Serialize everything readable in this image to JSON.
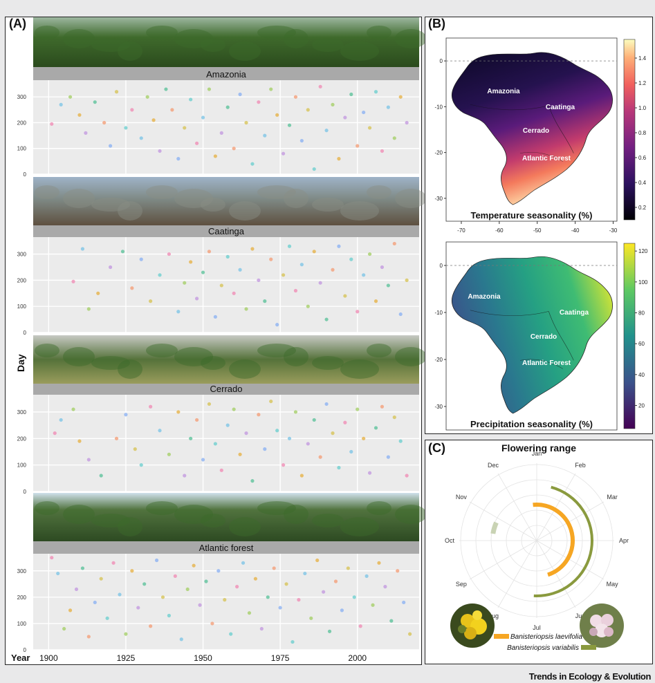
{
  "panel_a": {
    "label": "(A)",
    "y_axis_label": "Day",
    "x_axis_label": "Year",
    "x_ticks": [
      "1900",
      "1925",
      "1950",
      "1975",
      "2000"
    ],
    "y_ticks": [
      "0",
      "100",
      "200",
      "300"
    ]
  },
  "panel_b": {
    "label": "(B)",
    "x_ticks": [
      "-70",
      "-60",
      "-50",
      "-40",
      "-30"
    ],
    "y_ticks": [
      "0",
      "-10",
      "-20",
      "-30"
    ],
    "temp_title": "Temperature seasonality (%)",
    "precip_title": "Precipitation seasonality (%)",
    "temp_colorbar": [
      "1.4",
      "1.2",
      "1.0",
      "0.8",
      "0.6",
      "0.4",
      "0.2"
    ],
    "precip_colorbar": [
      "120",
      "100",
      "80",
      "60",
      "40",
      "20"
    ],
    "regions": [
      "Amazonia",
      "Caatinga",
      "Cerrado",
      "Atlantic Forest"
    ]
  },
  "panel_c": {
    "label": "(C)",
    "title": "Flowering range",
    "months": [
      "Jan",
      "Feb",
      "Mar",
      "Apr",
      "May",
      "Jun",
      "Jul",
      "Aug",
      "Sep",
      "Oct",
      "Nov",
      "Dec"
    ],
    "species_1": "Banisteriopsis laevifolia",
    "species_2": "Banisteriopsis variabilis",
    "color_1": "#f6a623",
    "color_2": "#8a9a3e"
  },
  "footer": "Trends in Ecology & Evolution",
  "chart_data": [
    {
      "type": "scatter",
      "panel": "A",
      "xlabel": "Year",
      "ylabel": "Day",
      "xlim": [
        1895,
        2020
      ],
      "ylim": [
        0,
        365
      ],
      "facets": [
        {
          "name": "Amazonia",
          "points": [
            [
              1901,
              195
            ],
            [
              1904,
              270
            ],
            [
              1907,
              300
            ],
            [
              1910,
              230
            ],
            [
              1912,
              160
            ],
            [
              1915,
              280
            ],
            [
              1918,
              200
            ],
            [
              1920,
              110
            ],
            [
              1922,
              320
            ],
            [
              1925,
              180
            ],
            [
              1927,
              250
            ],
            [
              1930,
              140
            ],
            [
              1932,
              300
            ],
            [
              1934,
              210
            ],
            [
              1936,
              90
            ],
            [
              1938,
              330
            ],
            [
              1940,
              250
            ],
            [
              1942,
              60
            ],
            [
              1944,
              180
            ],
            [
              1946,
              290
            ],
            [
              1948,
              120
            ],
            [
              1950,
              220
            ],
            [
              1952,
              330
            ],
            [
              1954,
              70
            ],
            [
              1956,
              160
            ],
            [
              1958,
              260
            ],
            [
              1960,
              100
            ],
            [
              1962,
              310
            ],
            [
              1964,
              200
            ],
            [
              1966,
              40
            ],
            [
              1968,
              280
            ],
            [
              1970,
              150
            ],
            [
              1972,
              330
            ],
            [
              1974,
              230
            ],
            [
              1976,
              80
            ],
            [
              1978,
              190
            ],
            [
              1980,
              300
            ],
            [
              1982,
              130
            ],
            [
              1984,
              250
            ],
            [
              1986,
              20
            ],
            [
              1988,
              340
            ],
            [
              1990,
              170
            ],
            [
              1992,
              270
            ],
            [
              1994,
              60
            ],
            [
              1996,
              220
            ],
            [
              1998,
              310
            ],
            [
              2000,
              110
            ],
            [
              2002,
              240
            ],
            [
              2004,
              180
            ],
            [
              2006,
              320
            ],
            [
              2008,
              90
            ],
            [
              2010,
              260
            ],
            [
              2012,
              140
            ],
            [
              2014,
              300
            ],
            [
              2016,
              200
            ]
          ]
        },
        {
          "name": "Caatinga",
          "points": [
            [
              1908,
              195
            ],
            [
              1911,
              320
            ],
            [
              1913,
              90
            ],
            [
              1916,
              150
            ],
            [
              1920,
              250
            ],
            [
              1924,
              310
            ],
            [
              1927,
              170
            ],
            [
              1930,
              280
            ],
            [
              1933,
              120
            ],
            [
              1936,
              220
            ],
            [
              1939,
              300
            ],
            [
              1942,
              80
            ],
            [
              1944,
              190
            ],
            [
              1946,
              270
            ],
            [
              1948,
              130
            ],
            [
              1950,
              230
            ],
            [
              1952,
              310
            ],
            [
              1954,
              60
            ],
            [
              1956,
              180
            ],
            [
              1958,
              290
            ],
            [
              1960,
              150
            ],
            [
              1962,
              240
            ],
            [
              1964,
              90
            ],
            [
              1966,
              320
            ],
            [
              1968,
              200
            ],
            [
              1970,
              120
            ],
            [
              1972,
              280
            ],
            [
              1974,
              30
            ],
            [
              1976,
              220
            ],
            [
              1978,
              330
            ],
            [
              1980,
              160
            ],
            [
              1982,
              260
            ],
            [
              1984,
              100
            ],
            [
              1986,
              310
            ],
            [
              1988,
              190
            ],
            [
              1990,
              50
            ],
            [
              1992,
              240
            ],
            [
              1994,
              330
            ],
            [
              1996,
              140
            ],
            [
              1998,
              280
            ],
            [
              2000,
              80
            ],
            [
              2002,
              220
            ],
            [
              2004,
              300
            ],
            [
              2006,
              120
            ],
            [
              2008,
              250
            ],
            [
              2010,
              180
            ],
            [
              2012,
              340
            ],
            [
              2014,
              70
            ],
            [
              2016,
              200
            ]
          ]
        },
        {
          "name": "Cerrado",
          "points": [
            [
              1902,
              220
            ],
            [
              1904,
              270
            ],
            [
              1908,
              310
            ],
            [
              1910,
              190
            ],
            [
              1913,
              120
            ],
            [
              1917,
              60
            ],
            [
              1922,
              200
            ],
            [
              1925,
              290
            ],
            [
              1928,
              160
            ],
            [
              1930,
              100
            ],
            [
              1933,
              320
            ],
            [
              1936,
              230
            ],
            [
              1939,
              140
            ],
            [
              1942,
              300
            ],
            [
              1944,
              60
            ],
            [
              1946,
              200
            ],
            [
              1948,
              270
            ],
            [
              1950,
              120
            ],
            [
              1952,
              330
            ],
            [
              1954,
              180
            ],
            [
              1956,
              80
            ],
            [
              1958,
              250
            ],
            [
              1960,
              310
            ],
            [
              1962,
              140
            ],
            [
              1964,
              220
            ],
            [
              1966,
              40
            ],
            [
              1968,
              290
            ],
            [
              1970,
              160
            ],
            [
              1972,
              340
            ],
            [
              1974,
              230
            ],
            [
              1976,
              100
            ],
            [
              1978,
              200
            ],
            [
              1980,
              300
            ],
            [
              1982,
              60
            ],
            [
              1984,
              180
            ],
            [
              1986,
              270
            ],
            [
              1988,
              130
            ],
            [
              1990,
              330
            ],
            [
              1992,
              220
            ],
            [
              1994,
              90
            ],
            [
              1996,
              260
            ],
            [
              1998,
              150
            ],
            [
              2000,
              310
            ],
            [
              2002,
              200
            ],
            [
              2004,
              70
            ],
            [
              2006,
              240
            ],
            [
              2008,
              320
            ],
            [
              2010,
              130
            ],
            [
              2012,
              280
            ],
            [
              2014,
              190
            ],
            [
              2016,
              60
            ]
          ]
        },
        {
          "name": "Atlantic forest",
          "points": [
            [
              1901,
              350
            ],
            [
              1903,
              290
            ],
            [
              1905,
              80
            ],
            [
              1907,
              150
            ],
            [
              1909,
              230
            ],
            [
              1911,
              310
            ],
            [
              1913,
              50
            ],
            [
              1915,
              180
            ],
            [
              1917,
              270
            ],
            [
              1919,
              120
            ],
            [
              1921,
              330
            ],
            [
              1923,
              210
            ],
            [
              1925,
              60
            ],
            [
              1927,
              300
            ],
            [
              1929,
              160
            ],
            [
              1931,
              250
            ],
            [
              1933,
              90
            ],
            [
              1935,
              340
            ],
            [
              1937,
              200
            ],
            [
              1939,
              130
            ],
            [
              1941,
              280
            ],
            [
              1943,
              40
            ],
            [
              1945,
              230
            ],
            [
              1947,
              320
            ],
            [
              1949,
              170
            ],
            [
              1951,
              260
            ],
            [
              1953,
              100
            ],
            [
              1955,
              300
            ],
            [
              1957,
              190
            ],
            [
              1959,
              60
            ],
            [
              1961,
              240
            ],
            [
              1963,
              330
            ],
            [
              1965,
              140
            ],
            [
              1967,
              270
            ],
            [
              1969,
              80
            ],
            [
              1971,
              200
            ],
            [
              1973,
              310
            ],
            [
              1975,
              160
            ],
            [
              1977,
              250
            ],
            [
              1979,
              30
            ],
            [
              1981,
              190
            ],
            [
              1983,
              290
            ],
            [
              1985,
              120
            ],
            [
              1987,
              340
            ],
            [
              1989,
              220
            ],
            [
              1991,
              70
            ],
            [
              1993,
              260
            ],
            [
              1995,
              150
            ],
            [
              1997,
              310
            ],
            [
              1999,
              200
            ],
            [
              2001,
              90
            ],
            [
              2003,
              280
            ],
            [
              2005,
              170
            ],
            [
              2007,
              330
            ],
            [
              2009,
              240
            ],
            [
              2011,
              110
            ],
            [
              2013,
              300
            ],
            [
              2015,
              180
            ],
            [
              2017,
              60
            ]
          ]
        }
      ]
    },
    {
      "type": "heatmap",
      "panel": "B-top",
      "title": "Temperature seasonality (%)",
      "colorbar_range": [
        0.1,
        1.55
      ],
      "xlim": [
        -74,
        -29
      ],
      "ylim": [
        -35,
        5
      ],
      "region_labels": [
        "Amazonia",
        "Caatinga",
        "Cerrado",
        "Atlantic Forest"
      ]
    },
    {
      "type": "heatmap",
      "panel": "B-bottom",
      "title": "Precipitation seasonality (%)",
      "colorbar_range": [
        5,
        125
      ],
      "xlim": [
        -74,
        -29
      ],
      "ylim": [
        -35,
        5
      ],
      "region_labels": [
        "Amazonia",
        "Caatinga",
        "Cerrado",
        "Atlantic Forest"
      ]
    },
    {
      "type": "radial",
      "panel": "C",
      "title": "Flowering range",
      "categories": [
        "Jan",
        "Feb",
        "Mar",
        "Apr",
        "May",
        "Jun",
        "Jul",
        "Aug",
        "Sep",
        "Oct",
        "Nov",
        "Dec"
      ],
      "series": [
        {
          "name": "Banisteriopsis laevifolia",
          "start_month": 11.8,
          "end_month": 5.4
        },
        {
          "name": "Banisteriopsis variabilis",
          "start_month": 12.5,
          "end_month": 6.1
        },
        {
          "name": "",
          "start_month": 9.8,
          "end_month": 9.3
        }
      ]
    }
  ]
}
